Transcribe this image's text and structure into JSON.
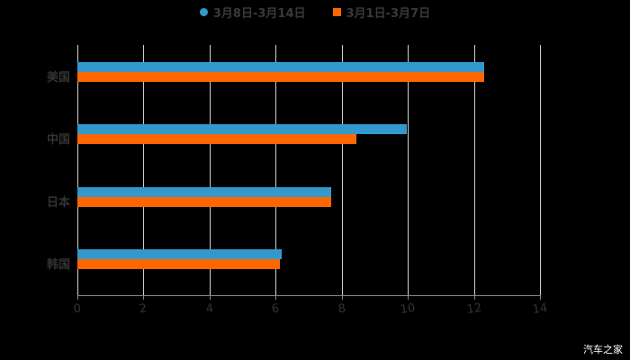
{
  "chart_data": {
    "type": "bar",
    "orientation": "horizontal",
    "title": "",
    "xlabel": "",
    "ylabel": "",
    "categories": [
      "美国",
      "中国",
      "日本",
      "韩国"
    ],
    "series": [
      {
        "name": "3月8日-3月14日",
        "color": "#3399cc",
        "values": [
          12.3,
          9.96,
          7.67,
          6.17
        ]
      },
      {
        "name": "3月1日-3月7日",
        "color": "#ff6600",
        "values": [
          12.3,
          8.44,
          7.67,
          6.12
        ]
      }
    ],
    "xlim": [
      0,
      14
    ],
    "xticks": [
      "0",
      "2",
      "4",
      "6",
      "8",
      "10",
      "12",
      "14"
    ],
    "grid": true,
    "legend_position": "top"
  },
  "legend": {
    "s1": "3月8日-3月14日",
    "s2": "3月1日-3月7日"
  },
  "watermark": "汽车之家"
}
